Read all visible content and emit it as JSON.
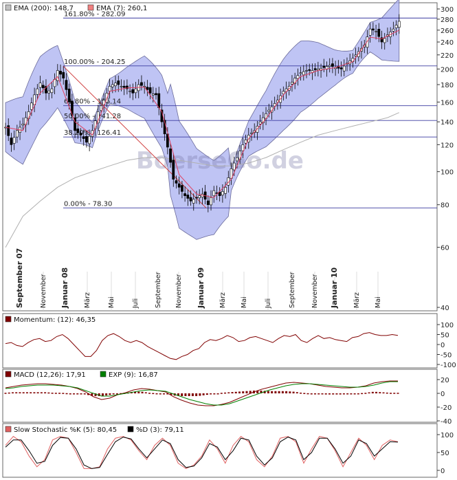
{
  "chart_data": [
    {
      "type": "candlestick",
      "legend": [
        {
          "label": "EMA (200): 148,7",
          "color": "#c0c0c0"
        },
        {
          "label": "EMA (7): 260,1",
          "color": "#f08080"
        }
      ],
      "y_scale": "log",
      "ylim": [
        40,
        300
      ],
      "y_ticks": [
        40,
        60,
        80,
        100,
        120,
        140,
        160,
        180,
        200,
        220,
        240,
        260,
        280,
        300
      ],
      "x_labels": [
        "September 07",
        "November",
        "Januar 08",
        "März",
        "Mai",
        "Juli",
        "September",
        "November",
        "Januar 09",
        "März",
        "Mai",
        "Juli",
        "September",
        "November",
        "Januar 10",
        "März",
        "Mai"
      ],
      "bold_x_labels": [
        "September 07",
        "Januar 08",
        "Januar 09",
        "Januar 10"
      ],
      "fib_levels": [
        {
          "label": "161.80% - 282.09",
          "value": 282.09
        },
        {
          "label": "100.00% - 204.25",
          "value": 204.25
        },
        {
          "label": "61.80% - 156.14",
          "value": 156.14
        },
        {
          "label": "50.00% - 141.28",
          "value": 141.28
        },
        {
          "label": "38.20% - 126.41",
          "value": 126.41
        },
        {
          "label": "0.00% - 78.30",
          "value": 78.3
        }
      ],
      "price_close_approx": [
        [
          0,
          135
        ],
        [
          2,
          120
        ],
        [
          4,
          132
        ],
        [
          6,
          138
        ],
        [
          8,
          150
        ],
        [
          10,
          168
        ],
        [
          12,
          182
        ],
        [
          14,
          170
        ],
        [
          16,
          175
        ],
        [
          18,
          198
        ],
        [
          20,
          188
        ],
        [
          22,
          160
        ],
        [
          24,
          132
        ],
        [
          26,
          128
        ],
        [
          28,
          122
        ],
        [
          30,
          132
        ],
        [
          32,
          150
        ],
        [
          34,
          162
        ],
        [
          36,
          178
        ],
        [
          38,
          182
        ],
        [
          40,
          178
        ],
        [
          42,
          175
        ],
        [
          44,
          170
        ],
        [
          46,
          180
        ],
        [
          48,
          178
        ],
        [
          50,
          170
        ],
        [
          52,
          168
        ],
        [
          54,
          140
        ],
        [
          56,
          118
        ],
        [
          58,
          95
        ],
        [
          60,
          90
        ],
        [
          62,
          85
        ],
        [
          64,
          82
        ],
        [
          66,
          84
        ],
        [
          68,
          86
        ],
        [
          70,
          80
        ],
        [
          72,
          88
        ],
        [
          74,
          85
        ],
        [
          76,
          90
        ],
        [
          78,
          102
        ],
        [
          80,
          110
        ],
        [
          82,
          120
        ],
        [
          84,
          128
        ],
        [
          86,
          132
        ],
        [
          88,
          140
        ],
        [
          90,
          148
        ],
        [
          92,
          155
        ],
        [
          94,
          162
        ],
        [
          96,
          172
        ],
        [
          98,
          178
        ],
        [
          100,
          188
        ],
        [
          102,
          195
        ],
        [
          104,
          198
        ],
        [
          106,
          198
        ],
        [
          108,
          200
        ],
        [
          110,
          202
        ],
        [
          112,
          205
        ],
        [
          114,
          202
        ],
        [
          116,
          200
        ],
        [
          118,
          208
        ],
        [
          120,
          215
        ],
        [
          122,
          225
        ],
        [
          124,
          235
        ],
        [
          126,
          262
        ],
        [
          128,
          258
        ],
        [
          130,
          240
        ],
        [
          132,
          252
        ],
        [
          134,
          262
        ],
        [
          136,
          276
        ]
      ],
      "ema7_approx": [
        [
          0,
          135
        ],
        [
          6,
          132
        ],
        [
          12,
          170
        ],
        [
          18,
          190
        ],
        [
          24,
          140
        ],
        [
          30,
          128
        ],
        [
          36,
          172
        ],
        [
          42,
          176
        ],
        [
          48,
          177
        ],
        [
          54,
          150
        ],
        [
          60,
          98
        ],
        [
          66,
          86
        ],
        [
          72,
          84
        ],
        [
          78,
          95
        ],
        [
          84,
          125
        ],
        [
          90,
          143
        ],
        [
          96,
          168
        ],
        [
          102,
          190
        ],
        [
          108,
          198
        ],
        [
          114,
          202
        ],
        [
          120,
          210
        ],
        [
          126,
          248
        ],
        [
          130,
          245
        ],
        [
          136,
          260
        ]
      ],
      "ema200_approx": [
        [
          0,
          60
        ],
        [
          6,
          74
        ],
        [
          12,
          82
        ],
        [
          18,
          90
        ],
        [
          24,
          96
        ],
        [
          30,
          100
        ],
        [
          36,
          104
        ],
        [
          42,
          108
        ],
        [
          48,
          110
        ],
        [
          54,
          110
        ],
        [
          60,
          108
        ],
        [
          66,
          106
        ],
        [
          72,
          104
        ],
        [
          78,
          104
        ],
        [
          84,
          106
        ],
        [
          90,
          110
        ],
        [
          96,
          116
        ],
        [
          102,
          122
        ],
        [
          108,
          128
        ],
        [
          114,
          132
        ],
        [
          120,
          136
        ],
        [
          126,
          140
        ],
        [
          132,
          144
        ],
        [
          136,
          149
        ]
      ]
    },
    {
      "type": "line",
      "legend": [
        {
          "label": "Momentum: (12): 46,35",
          "color": "#800000"
        }
      ],
      "ylim": [
        -100,
        100
      ],
      "y_ticks": [
        100,
        50,
        0,
        -50,
        -100
      ],
      "series": [
        {
          "name": "Momentum",
          "values": [
            5,
            10,
            -5,
            -10,
            10,
            25,
            30,
            15,
            20,
            40,
            50,
            30,
            0,
            -30,
            -60,
            -60,
            -30,
            20,
            45,
            55,
            40,
            20,
            10,
            20,
            10,
            -10,
            -25,
            -40,
            -55,
            -70,
            -75,
            -60,
            -50,
            -30,
            -20,
            10,
            25,
            20,
            30,
            45,
            35,
            15,
            20,
            35,
            40,
            30,
            20,
            10,
            30,
            45,
            40,
            50,
            20,
            10,
            30,
            45,
            30,
            35,
            25,
            20,
            15,
            35,
            40,
            55,
            60,
            50,
            45,
            45,
            50,
            46
          ]
        }
      ]
    },
    {
      "type": "line",
      "legend": [
        {
          "label": "MACD (12,26): 17,91",
          "color": "#800000"
        },
        {
          "label": "EXP (9): 16,87",
          "color": "#008000"
        }
      ],
      "ylim": [
        -45,
        25
      ],
      "y_ticks": [
        20,
        0,
        -20,
        -40
      ],
      "series": [
        {
          "name": "MACD",
          "values": [
            8,
            10,
            12,
            13,
            14,
            14,
            13,
            12,
            10,
            7,
            2,
            -5,
            -9,
            -7,
            -2,
            1,
            5,
            7,
            6,
            4,
            2,
            -5,
            -10,
            -14,
            -17,
            -18,
            -18,
            -16,
            -13,
            -8,
            -3,
            2,
            6,
            9,
            12,
            15,
            16,
            15,
            14,
            12,
            10,
            9,
            8,
            8,
            9,
            11,
            15,
            17,
            18,
            18
          ]
        },
        {
          "name": "EXP",
          "values": [
            7,
            8,
            10,
            11,
            12,
            12,
            12,
            11,
            10,
            8,
            4,
            0,
            -4,
            -4,
            -2,
            0,
            2,
            4,
            5,
            4,
            3,
            -1,
            -5,
            -9,
            -12,
            -15,
            -17,
            -17,
            -15,
            -11,
            -7,
            -3,
            1,
            5,
            8,
            11,
            13,
            14,
            14,
            13,
            12,
            11,
            10,
            9,
            9,
            10,
            12,
            15,
            17,
            17
          ]
        }
      ]
    },
    {
      "type": "line",
      "legend": [
        {
          "label": "Slow Stochastic %K (5): 80,45",
          "color": "#e06060"
        },
        {
          "label": "%D (3): 79,11",
          "color": "#000000"
        }
      ],
      "ylim": [
        0,
        110
      ],
      "y_ticks": [
        100,
        50,
        0
      ],
      "series": [
        {
          "name": "%K",
          "values": [
            70,
            95,
            80,
            40,
            10,
            30,
            85,
            95,
            90,
            50,
            5,
            5,
            10,
            60,
            90,
            95,
            85,
            55,
            30,
            70,
            90,
            70,
            20,
            5,
            15,
            40,
            85,
            60,
            20,
            70,
            95,
            80,
            30,
            10,
            40,
            90,
            95,
            80,
            20,
            60,
            95,
            90,
            55,
            10,
            50,
            90,
            70,
            30,
            70,
            85,
            80
          ]
        },
        {
          "name": "%D",
          "values": [
            65,
            85,
            85,
            55,
            20,
            25,
            70,
            92,
            90,
            60,
            15,
            5,
            8,
            45,
            80,
            93,
            88,
            60,
            35,
            60,
            85,
            75,
            30,
            8,
            12,
            35,
            75,
            65,
            30,
            55,
            90,
            85,
            40,
            15,
            35,
            80,
            93,
            85,
            30,
            50,
            90,
            90,
            60,
            20,
            40,
            85,
            75,
            40,
            60,
            80,
            79
          ]
        }
      ]
    }
  ],
  "watermark": "BoerseGo.de"
}
